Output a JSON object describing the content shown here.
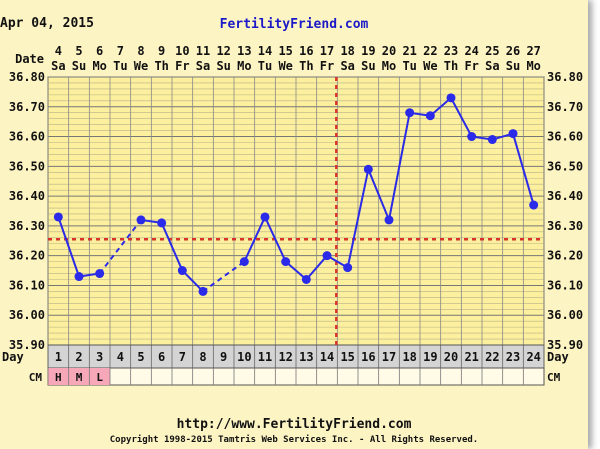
{
  "header": {
    "date": "Apr 04, 2015",
    "brand": "FertilityFriend.com"
  },
  "footer": {
    "url": "http://www.FertilityFriend.com",
    "copyright": "Copyright 1998-2015 Tamtris Web Services Inc. - All Rights Reserved."
  },
  "row_labels": {
    "date": "Date",
    "day": "Day",
    "cm": "CM"
  },
  "colors": {
    "background": "#fdf4c4",
    "grid_plot": "#fcef9e",
    "line": "#2a2ae8",
    "coverline": "#d8322a",
    "cm_fill": "#f7a8b8",
    "day_row": "#d4d4d4"
  },
  "chart_data": {
    "type": "line",
    "dates": [
      "4",
      "5",
      "6",
      "7",
      "8",
      "9",
      "10",
      "11",
      "12",
      "13",
      "14",
      "15",
      "16",
      "17",
      "18",
      "19",
      "20",
      "21",
      "22",
      "23",
      "24",
      "25",
      "26",
      "27"
    ],
    "weekdays": [
      "Sa",
      "Su",
      "Mo",
      "Tu",
      "We",
      "Th",
      "Fr",
      "Sa",
      "Su",
      "Mo",
      "Tu",
      "We",
      "Th",
      "Fr",
      "Sa",
      "Su",
      "Mo",
      "Tu",
      "We",
      "Th",
      "Fr",
      "Sa",
      "Su",
      "Mo"
    ],
    "cycle_days": [
      1,
      2,
      3,
      4,
      5,
      6,
      7,
      8,
      9,
      10,
      11,
      12,
      13,
      14,
      15,
      16,
      17,
      18,
      19,
      20,
      21,
      22,
      23,
      24
    ],
    "temperatures": [
      36.33,
      36.13,
      36.14,
      null,
      36.32,
      36.31,
      36.15,
      36.08,
      null,
      36.18,
      36.33,
      36.18,
      36.12,
      36.2,
      36.16,
      36.49,
      36.32,
      36.68,
      36.67,
      36.73,
      36.6,
      36.59,
      36.61,
      36.37
    ],
    "dashed_gaps": [
      [
        3,
        5
      ],
      [
        8,
        10
      ]
    ],
    "cervical_mucus": [
      "H",
      "M",
      "L",
      "",
      "",
      "",
      "",
      "",
      "",
      "",
      "",
      "",
      "",
      "",
      "",
      "",
      "",
      "",
      "",
      "",
      "",
      "",
      "",
      ""
    ],
    "y_ticks": [
      "36.80",
      "36.70",
      "36.60",
      "36.50",
      "36.40",
      "36.30",
      "36.20",
      "36.10",
      "36.00",
      "35.90"
    ],
    "ylim": [
      35.9,
      36.8
    ],
    "coverline": 36.255,
    "ovulation_day": 15,
    "grid": true
  }
}
